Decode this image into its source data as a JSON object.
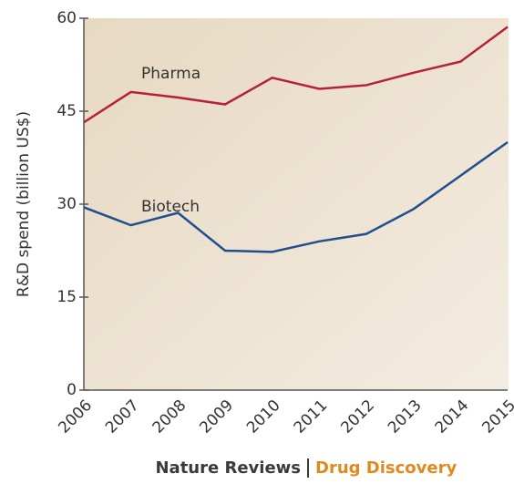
{
  "chart_data": {
    "type": "line",
    "y_label": "R&D spend (billion US$)",
    "categories": [
      "2006",
      "2007",
      "2008",
      "2009",
      "2010",
      "2011",
      "2012",
      "2013",
      "2014",
      "2015"
    ],
    "series": [
      {
        "name": "Pharma",
        "color": "#b5203a",
        "values": [
          43.2,
          48.1,
          47.2,
          46.1,
          50.4,
          48.6,
          49.2,
          51.2,
          53.0,
          58.6
        ]
      },
      {
        "name": "Biotech",
        "color": "#1f4f8f",
        "values": [
          29.5,
          26.6,
          28.6,
          22.5,
          22.3,
          24.0,
          25.2,
          29.2,
          34.6,
          40.0
        ]
      }
    ],
    "ylim": [
      0,
      60
    ],
    "yticks": [
      0,
      15,
      30,
      45,
      60
    ],
    "source": [
      "Nature Reviews",
      "Drug Discovery"
    ]
  }
}
